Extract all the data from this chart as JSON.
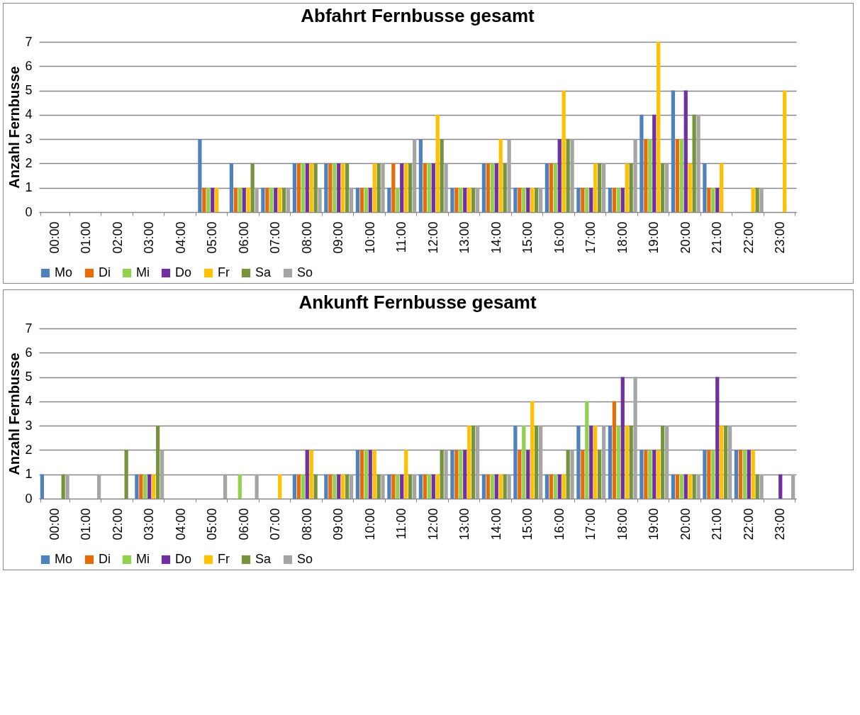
{
  "chart_data": [
    {
      "type": "bar",
      "title": "Abfahrt Fernbusse gesamt",
      "ylabel": "Anzahl Fernbusse",
      "categories": [
        "00:00",
        "01:00",
        "02:00",
        "03:00",
        "04:00",
        "05:00",
        "06:00",
        "07:00",
        "08:00",
        "09:00",
        "10:00",
        "11:00",
        "12:00",
        "13:00",
        "14:00",
        "15:00",
        "16:00",
        "17:00",
        "18:00",
        "19:00",
        "20:00",
        "21:00",
        "22:00",
        "23:00"
      ],
      "series": [
        {
          "name": "Mo",
          "color": "#4f81bd",
          "values": [
            0,
            0,
            0,
            0,
            0,
            3,
            2,
            1,
            2,
            2,
            1,
            1,
            3,
            1,
            2,
            1,
            2,
            1,
            1,
            4,
            5,
            2,
            0,
            0
          ]
        },
        {
          "name": "Di",
          "color": "#e46c0a",
          "values": [
            0,
            0,
            0,
            0,
            0,
            1,
            1,
            1,
            2,
            2,
            1,
            2,
            2,
            1,
            2,
            1,
            2,
            1,
            1,
            3,
            3,
            1,
            0,
            0
          ]
        },
        {
          "name": "Mi",
          "color": "#92d050",
          "values": [
            0,
            0,
            0,
            0,
            0,
            1,
            1,
            1,
            2,
            2,
            1,
            1,
            2,
            1,
            2,
            1,
            2,
            1,
            1,
            3,
            3,
            1,
            0,
            0
          ]
        },
        {
          "name": "Do",
          "color": "#7030a0",
          "values": [
            0,
            0,
            0,
            0,
            0,
            1,
            1,
            1,
            2,
            2,
            1,
            2,
            2,
            1,
            2,
            1,
            3,
            1,
            1,
            4,
            5,
            1,
            0,
            0
          ]
        },
        {
          "name": "Fr",
          "color": "#ffc000",
          "values": [
            0,
            0,
            0,
            0,
            0,
            1,
            1,
            1,
            2,
            2,
            2,
            2,
            4,
            1,
            3,
            1,
            5,
            2,
            2,
            7,
            2,
            2,
            1,
            5
          ]
        },
        {
          "name": "Sa",
          "color": "#77933c",
          "values": [
            0,
            0,
            0,
            0,
            0,
            0,
            2,
            1,
            2,
            2,
            2,
            2,
            3,
            1,
            2,
            1,
            3,
            2,
            2,
            2,
            4,
            0,
            1,
            0
          ]
        },
        {
          "name": "So",
          "color": "#a5a5a5",
          "values": [
            0,
            0,
            0,
            0,
            0,
            0,
            1,
            1,
            1,
            1,
            2,
            3,
            2,
            1,
            3,
            1,
            3,
            2,
            3,
            2,
            4,
            0,
            1,
            0
          ]
        }
      ],
      "ylim": [
        0,
        7
      ],
      "yticks": [
        0,
        1,
        2,
        3,
        4,
        5,
        6,
        7
      ],
      "grid": "y",
      "legend": "bottom"
    },
    {
      "type": "bar",
      "title": "Ankunft Fernbusse gesamt",
      "ylabel": "Anzahl Fernbusse",
      "categories": [
        "00:00",
        "01:00",
        "02:00",
        "03:00",
        "04:00",
        "05:00",
        "06:00",
        "07:00",
        "08:00",
        "09:00",
        "10:00",
        "11:00",
        "12:00",
        "13:00",
        "14:00",
        "15:00",
        "16:00",
        "17:00",
        "18:00",
        "19:00",
        "20:00",
        "21:00",
        "22:00",
        "23:00"
      ],
      "series": [
        {
          "name": "Mo",
          "color": "#4f81bd",
          "values": [
            1,
            0,
            0,
            1,
            0,
            0,
            0,
            0,
            1,
            1,
            2,
            1,
            1,
            2,
            1,
            3,
            1,
            3,
            3,
            2,
            1,
            2,
            2,
            0
          ]
        },
        {
          "name": "Di",
          "color": "#e46c0a",
          "values": [
            0,
            0,
            0,
            1,
            0,
            0,
            0,
            0,
            1,
            1,
            2,
            1,
            1,
            2,
            1,
            2,
            1,
            2,
            4,
            2,
            1,
            2,
            2,
            0
          ]
        },
        {
          "name": "Mi",
          "color": "#92d050",
          "values": [
            0,
            0,
            0,
            1,
            0,
            0,
            1,
            0,
            1,
            1,
            2,
            1,
            1,
            2,
            1,
            3,
            1,
            4,
            3,
            2,
            1,
            2,
            2,
            0
          ]
        },
        {
          "name": "Do",
          "color": "#7030a0",
          "values": [
            0,
            0,
            0,
            1,
            0,
            0,
            0,
            0,
            2,
            1,
            2,
            1,
            1,
            2,
            1,
            2,
            1,
            3,
            5,
            2,
            1,
            5,
            2,
            1
          ]
        },
        {
          "name": "Fr",
          "color": "#ffc000",
          "values": [
            0,
            0,
            0,
            1,
            0,
            0,
            0,
            1,
            2,
            1,
            2,
            2,
            1,
            3,
            1,
            4,
            1,
            3,
            3,
            2,
            1,
            3,
            2,
            0
          ]
        },
        {
          "name": "Sa",
          "color": "#77933c",
          "values": [
            1,
            0,
            2,
            3,
            0,
            0,
            0,
            0,
            1,
            1,
            1,
            1,
            2,
            3,
            1,
            3,
            2,
            2,
            3,
            3,
            1,
            3,
            1,
            0
          ]
        },
        {
          "name": "So",
          "color": "#a5a5a5",
          "values": [
            1,
            1,
            0,
            2,
            0,
            1,
            1,
            0,
            0,
            1,
            1,
            1,
            2,
            3,
            1,
            3,
            2,
            3,
            5,
            3,
            1,
            3,
            1,
            1
          ]
        }
      ],
      "ylim": [
        0,
        7
      ],
      "yticks": [
        0,
        1,
        2,
        3,
        4,
        5,
        6,
        7
      ],
      "grid": "y",
      "legend": "bottom"
    }
  ]
}
